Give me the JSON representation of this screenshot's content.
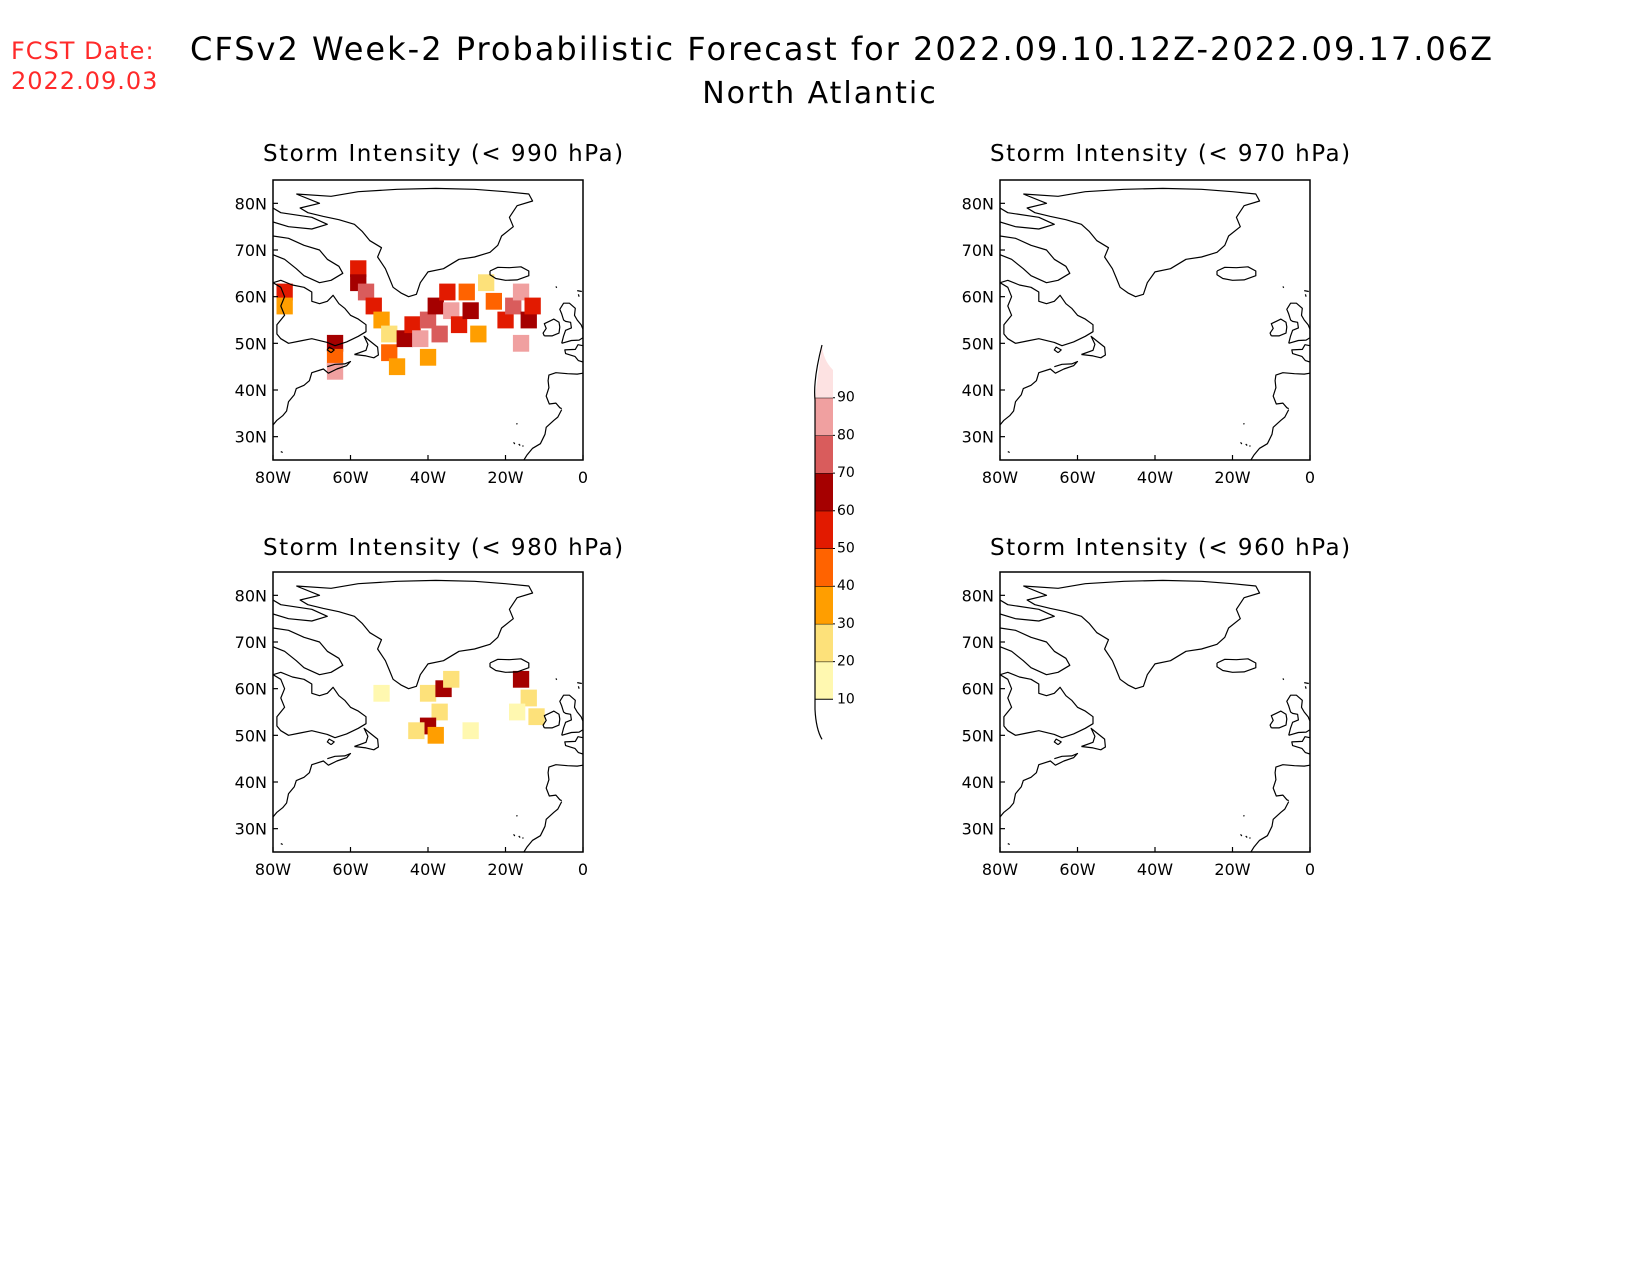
{
  "header": {
    "fcst_label": "FCST Date:",
    "fcst_date": "2022.09.03",
    "title": "CFSv2 Week-2 Probabilistic Forecast for 2022.09.10.12Z-2022.09.17.06Z",
    "region": "North Atlantic"
  },
  "colors": {
    "fcst_text": "#ff2a2a",
    "levels": [
      "#fff8b0",
      "#fde17a",
      "#ff9e00",
      "#ff6300",
      "#e21a00",
      "#a50000",
      "#d95c5c",
      "#f0a0a0",
      "#fde2e2"
    ]
  },
  "chart_data": [
    {
      "type": "heatmap",
      "title": "Storm Intensity (< 990 hPa)",
      "x_ticks": [
        "80W",
        "60W",
        "40W",
        "20W",
        "0"
      ],
      "y_ticks": [
        "80N",
        "70N",
        "60N",
        "50N",
        "40N",
        "30N"
      ],
      "xlim": [
        -80,
        0
      ],
      "ylim": [
        25,
        85
      ],
      "cells": [
        {
          "lon": -77,
          "lat": 61,
          "value": 50
        },
        {
          "lon": -77,
          "lat": 58,
          "value": 30
        },
        {
          "lon": -64,
          "lat": 50,
          "value": 60
        },
        {
          "lon": -64,
          "lat": 47,
          "value": 40
        },
        {
          "lon": -64,
          "lat": 44,
          "value": 80
        },
        {
          "lon": -58,
          "lat": 66,
          "value": 50
        },
        {
          "lon": -58,
          "lat": 63,
          "value": 60
        },
        {
          "lon": -56,
          "lat": 61,
          "value": 70
        },
        {
          "lon": -54,
          "lat": 58,
          "value": 50
        },
        {
          "lon": -52,
          "lat": 55,
          "value": 30
        },
        {
          "lon": -50,
          "lat": 52,
          "value": 20
        },
        {
          "lon": -50,
          "lat": 48,
          "value": 40
        },
        {
          "lon": -48,
          "lat": 45,
          "value": 30
        },
        {
          "lon": -46,
          "lat": 51,
          "value": 60
        },
        {
          "lon": -44,
          "lat": 54,
          "value": 50
        },
        {
          "lon": -42,
          "lat": 51,
          "value": 80
        },
        {
          "lon": -40,
          "lat": 55,
          "value": 70
        },
        {
          "lon": -40,
          "lat": 47,
          "value": 30
        },
        {
          "lon": -38,
          "lat": 58,
          "value": 60
        },
        {
          "lon": -37,
          "lat": 52,
          "value": 70
        },
        {
          "lon": -35,
          "lat": 61,
          "value": 50
        },
        {
          "lon": -34,
          "lat": 57,
          "value": 80
        },
        {
          "lon": -32,
          "lat": 54,
          "value": 50
        },
        {
          "lon": -30,
          "lat": 61,
          "value": 40
        },
        {
          "lon": -29,
          "lat": 57,
          "value": 60
        },
        {
          "lon": -27,
          "lat": 52,
          "value": 30
        },
        {
          "lon": -25,
          "lat": 63,
          "value": 20
        },
        {
          "lon": -23,
          "lat": 59,
          "value": 40
        },
        {
          "lon": -20,
          "lat": 55,
          "value": 50
        },
        {
          "lon": -18,
          "lat": 58,
          "value": 70
        },
        {
          "lon": -16,
          "lat": 61,
          "value": 80
        },
        {
          "lon": -14,
          "lat": 55,
          "value": 60
        },
        {
          "lon": -13,
          "lat": 58,
          "value": 50
        },
        {
          "lon": -16,
          "lat": 50,
          "value": 80
        }
      ]
    },
    {
      "type": "heatmap",
      "title": "Storm Intensity (< 970 hPa)",
      "x_ticks": [
        "80W",
        "60W",
        "40W",
        "20W",
        "0"
      ],
      "y_ticks": [
        "80N",
        "70N",
        "60N",
        "50N",
        "40N",
        "30N"
      ],
      "xlim": [
        -80,
        0
      ],
      "ylim": [
        25,
        85
      ],
      "cells": []
    },
    {
      "type": "heatmap",
      "title": "Storm Intensity (< 980 hPa)",
      "x_ticks": [
        "80W",
        "60W",
        "40W",
        "20W",
        "0"
      ],
      "y_ticks": [
        "80N",
        "70N",
        "60N",
        "50N",
        "40N",
        "30N"
      ],
      "xlim": [
        -80,
        0
      ],
      "ylim": [
        25,
        85
      ],
      "cells": [
        {
          "lon": -52,
          "lat": 59,
          "value": 10
        },
        {
          "lon": -40,
          "lat": 59,
          "value": 20
        },
        {
          "lon": -36,
          "lat": 60,
          "value": 60
        },
        {
          "lon": -34,
          "lat": 62,
          "value": 20
        },
        {
          "lon": -37,
          "lat": 55,
          "value": 20
        },
        {
          "lon": -40,
          "lat": 52,
          "value": 60
        },
        {
          "lon": -38,
          "lat": 50,
          "value": 30
        },
        {
          "lon": -43,
          "lat": 51,
          "value": 20
        },
        {
          "lon": -29,
          "lat": 51,
          "value": 10
        },
        {
          "lon": -16,
          "lat": 62,
          "value": 60
        },
        {
          "lon": -14,
          "lat": 58,
          "value": 20
        },
        {
          "lon": -17,
          "lat": 55,
          "value": 10
        },
        {
          "lon": -12,
          "lat": 54,
          "value": 20
        }
      ]
    },
    {
      "type": "heatmap",
      "title": "Storm Intensity (< 960 hPa)",
      "x_ticks": [
        "80W",
        "60W",
        "40W",
        "20W",
        "0"
      ],
      "y_ticks": [
        "80N",
        "70N",
        "60N",
        "50N",
        "40N",
        "30N"
      ],
      "xlim": [
        -80,
        0
      ],
      "ylim": [
        25,
        85
      ],
      "cells": []
    }
  ],
  "colorbar": {
    "labels": [
      "10",
      "20",
      "30",
      "40",
      "50",
      "60",
      "70",
      "80",
      "90"
    ]
  }
}
